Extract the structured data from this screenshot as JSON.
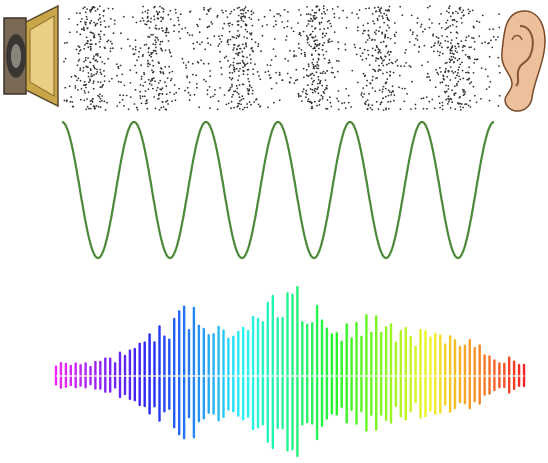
{
  "figure": {
    "panels": [
      {
        "id": "particles",
        "icons": [
          "speaker-icon",
          "ear-icon"
        ]
      },
      {
        "id": "sine",
        "cycles": 6
      },
      {
        "id": "spectrum",
        "bars": 96
      }
    ],
    "colors": {
      "particle": "#333333",
      "sine": "#4a8a3a",
      "spectrum_start": "#ff4fd0",
      "spectrum_end": "#dd1a2a",
      "speaker": "#c8a23a",
      "ear": "#e6b48c"
    }
  }
}
